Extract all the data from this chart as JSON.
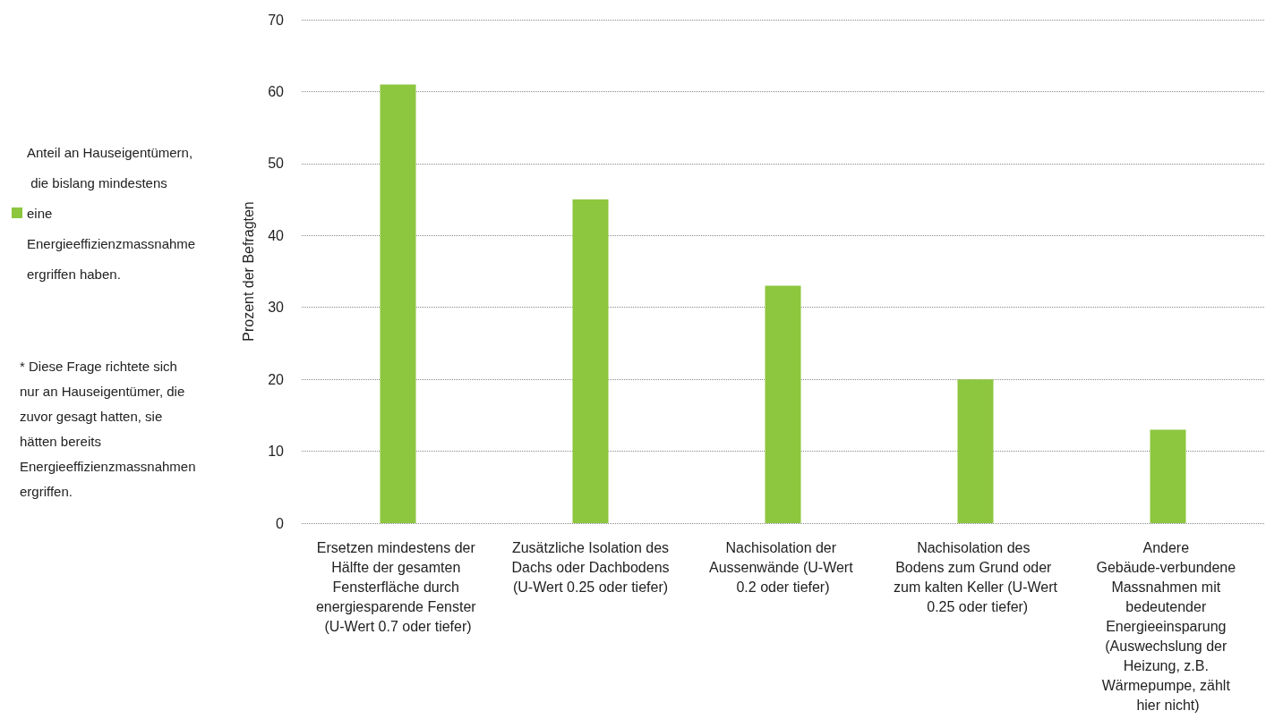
{
  "chart_data": {
    "type": "bar",
    "ylabel": "Prozent der Befragten",
    "categories": [
      "Ersetzen mindestens der Hälfte der gesamten Fensterfläche durch energiesparende Fenster (U-Wert 0.7 oder tiefer)",
      "Zusätzliche Isolation des Dachs oder Dachbodens (U-Wert 0.25 oder tiefer)",
      "Nachisolation der Aussenwände (U-Wert 0.2 oder tiefer)",
      "Nachisolation des Bodens zum Grund oder zum kalten Keller (U-Wert 0.25 oder tiefer)",
      "Andere Gebäude-verbundene Massnahmen mit bedeutender Energieeinsparung (Auswechslung der Heizung, z.B. Wärmepumpe, zählt hier nicht)"
    ],
    "series": [
      {
        "name": "Anteil an Hauseigentümern, die bislang mindestens eine Energieeffizienzmassnahme ergriffen haben.",
        "color": "#8dc63f",
        "values": [
          61,
          45,
          33,
          20,
          13
        ]
      }
    ],
    "ylim": [
      0,
      70
    ],
    "yticks": [
      0,
      10,
      20,
      30,
      40,
      50,
      60,
      70
    ],
    "grid": "y",
    "legend": "left",
    "annotations": [
      "* Diese Frage richtete sich nur an Hauseigentümer, die zuvor gesagt hatten, sie hätten bereits Energieeffizienzmassnahmen ergriffen."
    ]
  }
}
